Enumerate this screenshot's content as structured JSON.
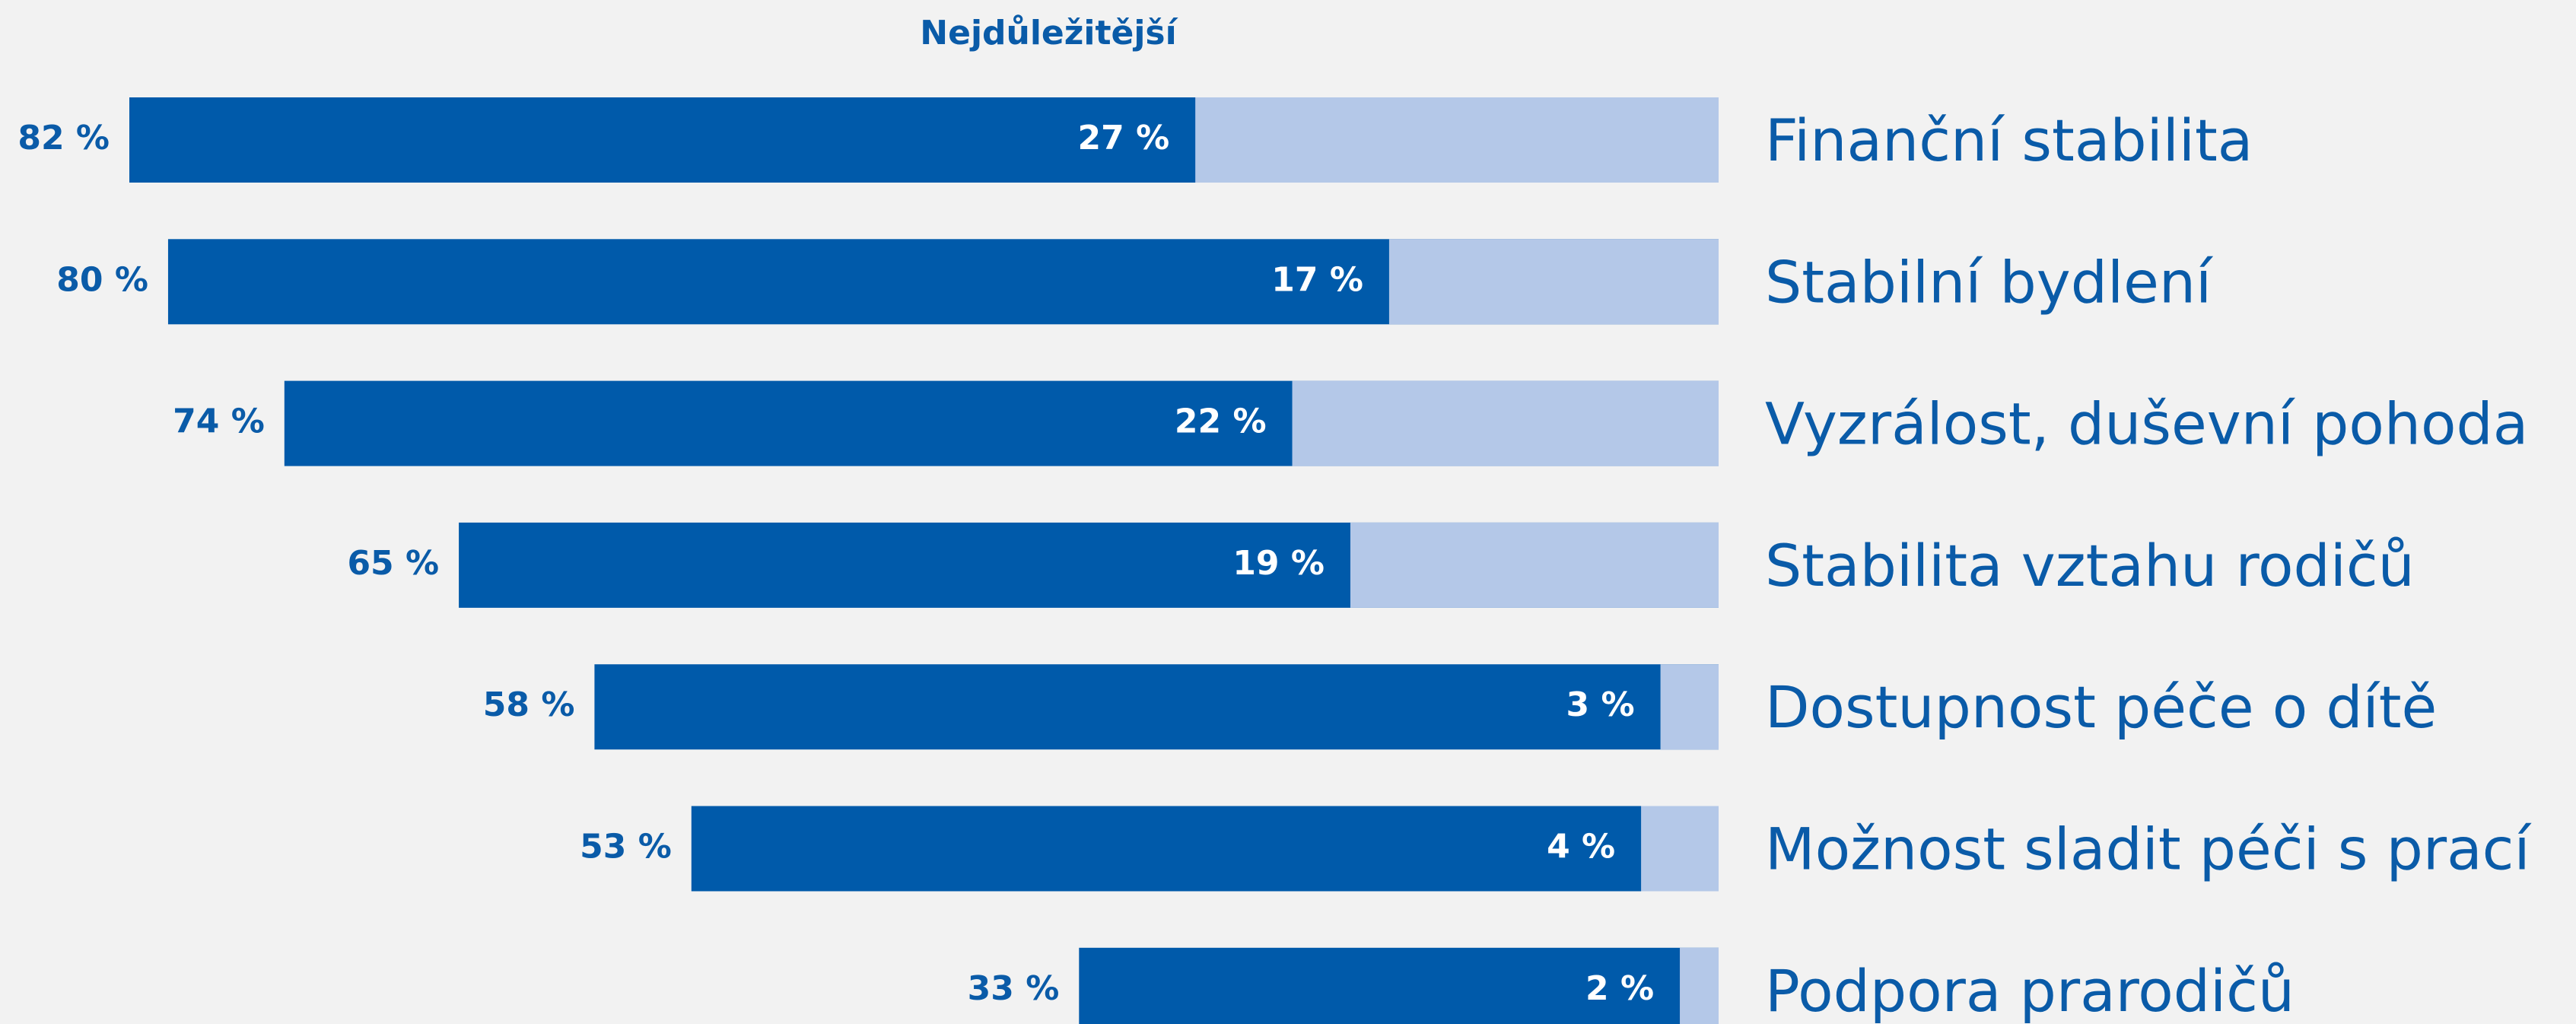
{
  "chart_data": {
    "type": "bar",
    "orientation": "horizontal",
    "categories": [
      "Finanční stabilita",
      "Stabilní bydlení",
      "Vyzrálost, duševní pohoda",
      "Stabilita vztahu rodičů",
      "Dostupnost péče o dítě",
      "Možnost sladit péči s prací",
      "Podpora prarodičů"
    ],
    "series": [
      {
        "color": "#005aaa",
        "values": [
          82,
          80,
          74,
          65,
          58,
          53,
          33
        ],
        "value_labels": [
          "82 %",
          "80 %",
          "74 %",
          "65 %",
          "58 %",
          "53 %",
          "33 %"
        ]
      },
      {
        "name": "Nejdůležitější",
        "color": "#b4c8e8",
        "values": [
          27,
          17,
          22,
          19,
          3,
          4,
          2
        ],
        "value_labels": [
          "27 %",
          "17 %",
          "22 %",
          "19 %",
          "3 %",
          "4 %",
          "2 %"
        ]
      }
    ]
  }
}
